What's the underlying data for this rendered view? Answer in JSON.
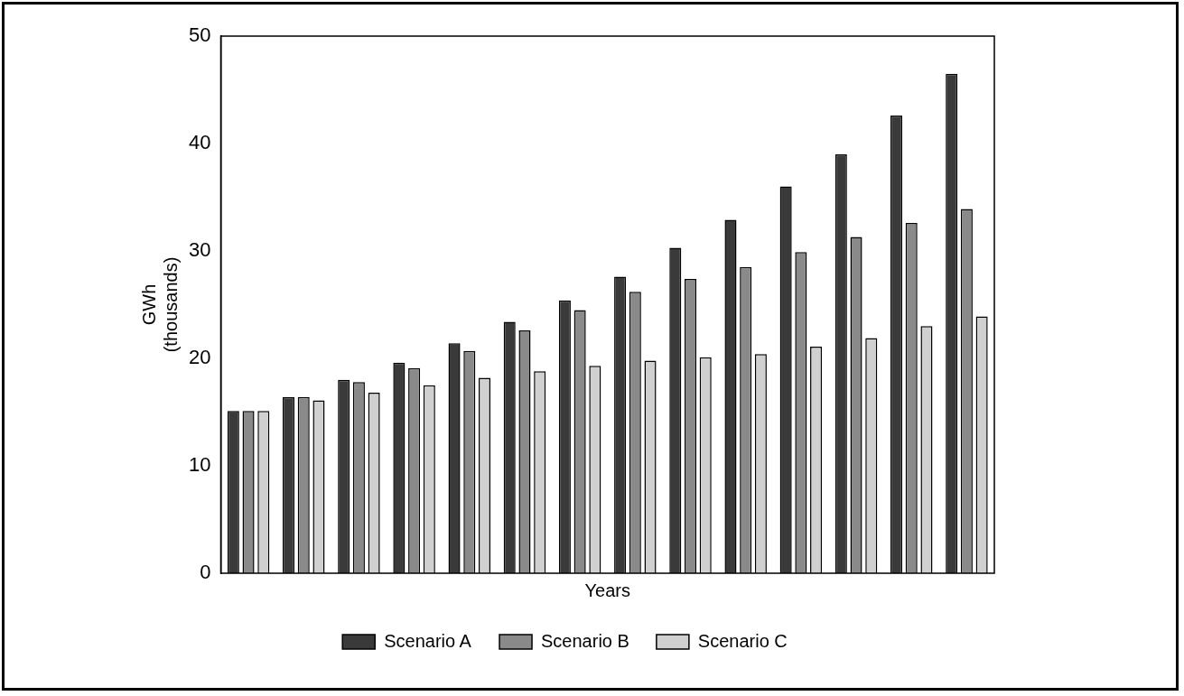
{
  "chart_data": {
    "type": "bar",
    "xlabel": "Years",
    "ylabel": "GWh\n(thousands)",
    "categories": [
      null,
      null,
      null,
      null,
      null,
      null,
      null,
      null,
      null,
      null,
      null,
      null,
      null,
      null
    ],
    "series": [
      {
        "name": "Scenario A",
        "color": "#3a3a3a",
        "values": [
          15.1,
          16.4,
          18.0,
          19.6,
          21.4,
          23.4,
          25.4,
          27.6,
          30.3,
          32.9,
          36.0,
          39.0,
          42.6,
          46.5
        ]
      },
      {
        "name": "Scenario B",
        "color": "#8a8a8a",
        "values": [
          15.1,
          16.4,
          17.8,
          19.1,
          20.7,
          22.6,
          24.5,
          26.2,
          27.4,
          28.5,
          29.9,
          31.3,
          32.6,
          33.9
        ]
      },
      {
        "name": "Scenario C",
        "color": "#d0d0d0",
        "values": [
          15.1,
          16.1,
          16.8,
          17.5,
          18.2,
          18.8,
          19.3,
          19.8,
          20.1,
          20.4,
          21.1,
          21.9,
          23.0,
          23.9
        ]
      }
    ],
    "ylim": [
      0,
      50
    ],
    "yticks": [
      0,
      10,
      20,
      30,
      40,
      50
    ],
    "grid": false,
    "legend": "bottom"
  }
}
